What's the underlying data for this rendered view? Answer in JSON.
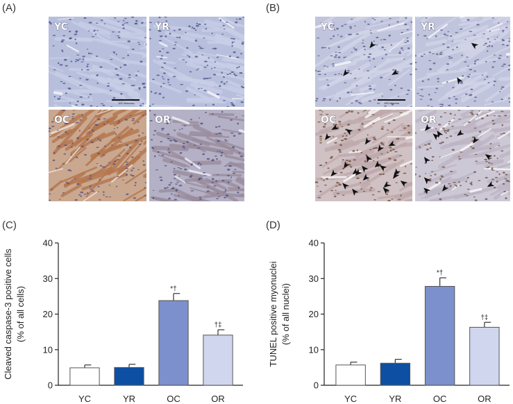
{
  "panels": {
    "A": {
      "label": "(A)",
      "tiles": [
        {
          "label": "YC",
          "scale_bar": "100 microns",
          "style": "blue"
        },
        {
          "label": "YR",
          "scale_bar": "",
          "style": "blue"
        },
        {
          "label": "OC",
          "scale_bar": "",
          "style": "brown"
        },
        {
          "label": "OR",
          "scale_bar": "",
          "style": "mixed"
        }
      ]
    },
    "B": {
      "label": "(B)",
      "tiles": [
        {
          "label": "YC",
          "scale_bar": "100 microns",
          "style": "blue-fiber",
          "arrows": 3
        },
        {
          "label": "YR",
          "scale_bar": "",
          "style": "blue-fiber",
          "arrows": 2
        },
        {
          "label": "OC",
          "scale_bar": "",
          "style": "tunel",
          "arrows": 22
        },
        {
          "label": "OR",
          "scale_bar": "",
          "style": "tunel-light",
          "arrows": 11
        }
      ]
    },
    "C": {
      "label": "(C)"
    },
    "D": {
      "label": "(D)"
    }
  },
  "colors": {
    "YC": "#ffffff",
    "YR": "#0d4fa3",
    "OC": "#7b90cc",
    "OR": "#d1d6ef"
  },
  "chart_data": [
    {
      "type": "bar",
      "panel": "C",
      "ylabel": [
        "Cleaved caspase-3 positive cells",
        "(% of all cells)"
      ],
      "xlabel": "",
      "categories": [
        "YC",
        "YR",
        "OC",
        "OR"
      ],
      "values": [
        4.9,
        5.0,
        23.8,
        14.1
      ],
      "errors": [
        0.8,
        0.9,
        2.0,
        1.5
      ],
      "annotations": [
        "",
        "",
        "*†",
        "†‡"
      ],
      "ylim": [
        0,
        40
      ],
      "yticks": [
        0,
        10,
        20,
        30,
        40
      ]
    },
    {
      "type": "bar",
      "panel": "D",
      "ylabel": [
        "TUNEL positive myonuclei",
        "(% of all nuclei)"
      ],
      "xlabel": "",
      "categories": [
        "YC",
        "YR",
        "OC",
        "OR"
      ],
      "values": [
        5.7,
        6.2,
        27.8,
        16.3
      ],
      "errors": [
        0.8,
        1.1,
        2.4,
        1.4
      ],
      "annotations": [
        "",
        "",
        "*†",
        "†‡"
      ],
      "ylim": [
        0,
        40
      ],
      "yticks": [
        0,
        10,
        20,
        30,
        40
      ]
    }
  ]
}
